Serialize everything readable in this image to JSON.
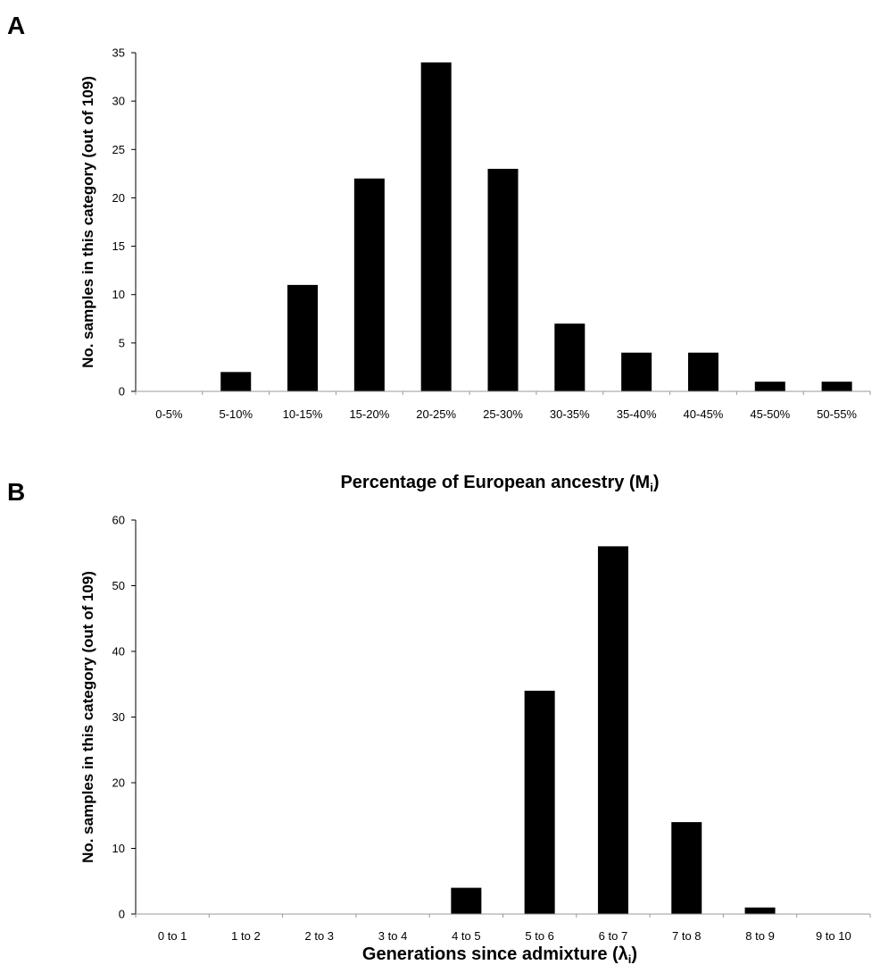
{
  "chart_data": [
    {
      "panel": "A",
      "type": "bar",
      "categories": [
        "0-5%",
        "5-10%",
        "10-15%",
        "15-20%",
        "20-25%",
        "25-30%",
        "30-35%",
        "35-40%",
        "40-45%",
        "45-50%",
        "50-55%"
      ],
      "values": [
        0,
        2,
        11,
        22,
        34,
        23,
        7,
        4,
        4,
        1,
        1
      ],
      "xlabel": "Percentage of European ancestry (M",
      "xlabel_subscript": "i",
      "xlabel_close": ")",
      "ylabel": "No. samples in this category (out of 109)",
      "ylim": [
        0,
        35
      ],
      "yticks": [
        "0",
        "5",
        "10",
        "15",
        "20",
        "25",
        "30",
        "35"
      ],
      "grid": false,
      "bar_color": "#000000"
    },
    {
      "panel": "B",
      "type": "bar",
      "categories": [
        "0 to 1",
        "1 to 2",
        "2 to 3",
        "3 to 4",
        "4 to 5",
        "5 to 6",
        "6 to 7",
        "7 to 8",
        "8 to 9",
        "9 to 10"
      ],
      "values": [
        0,
        0,
        0,
        0,
        4,
        34,
        56,
        14,
        1,
        0
      ],
      "xlabel": "Generations since admixture (λ",
      "xlabel_subscript": "i",
      "xlabel_close": ")",
      "ylabel": "No. samples in this category (out of 109)",
      "ylim": [
        0,
        60
      ],
      "yticks": [
        "0",
        "10",
        "20",
        "30",
        "40",
        "50",
        "60"
      ],
      "grid": false,
      "bar_color": "#000000"
    }
  ]
}
